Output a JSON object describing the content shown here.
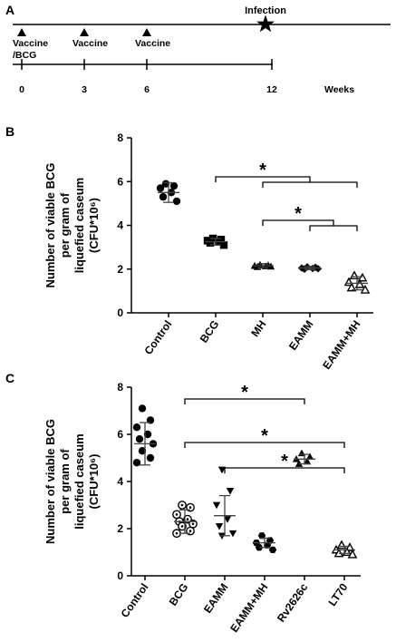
{
  "panels": {
    "A": {
      "letter": "A",
      "infection_label": "Infection",
      "vaccine_labels": [
        {
          "week": 0,
          "lines": [
            "Vaccine",
            "/BCG"
          ]
        },
        {
          "week": 3,
          "lines": [
            "Vaccine"
          ]
        },
        {
          "week": 6,
          "lines": [
            "Vaccine"
          ]
        }
      ],
      "ticks": [
        "0",
        "3",
        "6",
        "12"
      ],
      "unit_label": "Weeks",
      "infection_week": 12
    },
    "B": {
      "letter": "B"
    },
    "C": {
      "letter": "C"
    }
  },
  "chart_data": [
    {
      "type": "scatter",
      "panel": "B",
      "ylabel_lines": [
        "Number of viable BCG",
        "per gram of",
        "liquefied caseum",
        "(CFU*10⁶)"
      ],
      "ylim": [
        0,
        8
      ],
      "yticks": [
        "0",
        "2",
        "4",
        "6",
        "8"
      ],
      "categories": [
        "Control",
        "BCG",
        "MH",
        "EAMM",
        "EAMM+MH"
      ],
      "markers": [
        "filled-circle",
        "filled-square",
        "filled-triangle-up",
        "filled-diamond",
        "open-triangle-up"
      ],
      "means": [
        5.5,
        3.25,
        2.15,
        2.05,
        1.35
      ],
      "sd": [
        0.45,
        0.15,
        0.1,
        0.07,
        0.3
      ],
      "points": [
        [
          5.9,
          5.8,
          5.7,
          5.5,
          5.3,
          5.1
        ],
        [
          3.4,
          3.35,
          3.3,
          3.25,
          3.2,
          3.1
        ],
        [
          2.2,
          2.18,
          2.15,
          2.13,
          2.1,
          2.12
        ],
        [
          2.1,
          2.08,
          2.05,
          2.03,
          2.0,
          2.02
        ],
        [
          1.7,
          1.6,
          1.4,
          1.3,
          1.15,
          1.05
        ]
      ],
      "significance": [
        {
          "from": 1,
          "to": [
            2,
            4
          ],
          "label": "*"
        },
        {
          "from": 2,
          "to": [
            3,
            4
          ],
          "label": "*"
        }
      ]
    },
    {
      "type": "scatter",
      "panel": "C",
      "ylabel_lines": [
        "Number of viable BCG",
        "per gram of",
        "liquefied caseum",
        "(CFU*10⁶)"
      ],
      "ylim": [
        0,
        8
      ],
      "yticks": [
        "0",
        "2",
        "4",
        "6",
        "8"
      ],
      "categories": [
        "Control",
        "BCG",
        "EAMM",
        "EAMM+MH",
        "Rv2626c",
        "LT70"
      ],
      "markers": [
        "filled-circle",
        "open-dot-circle",
        "filled-triangle-down",
        "filled-hexagon",
        "filled-triangle-up",
        "open-triangle-up"
      ],
      "means": [
        5.6,
        2.3,
        2.55,
        1.4,
        4.95,
        1.1
      ],
      "sd": [
        0.9,
        0.5,
        0.85,
        0.2,
        0.2,
        0.15
      ],
      "points": [
        [
          7.1,
          6.6,
          6.3,
          6.0,
          5.8,
          5.6,
          5.3,
          5.0,
          4.8
        ],
        [
          3.0,
          2.9,
          2.6,
          2.4,
          2.3,
          2.2,
          2.1,
          1.9,
          1.8
        ],
        [
          4.5,
          3.6,
          3.0,
          2.4,
          2.1,
          1.8,
          1.7
        ],
        [
          1.7,
          1.5,
          1.4,
          1.3,
          1.2,
          1.1
        ],
        [
          5.2,
          5.05,
          4.95,
          4.85,
          4.75
        ],
        [
          1.3,
          1.2,
          1.1,
          1.0,
          0.95,
          0.9
        ]
      ],
      "significance": [
        {
          "from": 1,
          "to": [
            4
          ],
          "label": "*"
        },
        {
          "from": 1,
          "to": [
            5
          ],
          "label": "*"
        },
        {
          "from": 2,
          "to": [
            5
          ],
          "label": "*"
        }
      ]
    }
  ]
}
